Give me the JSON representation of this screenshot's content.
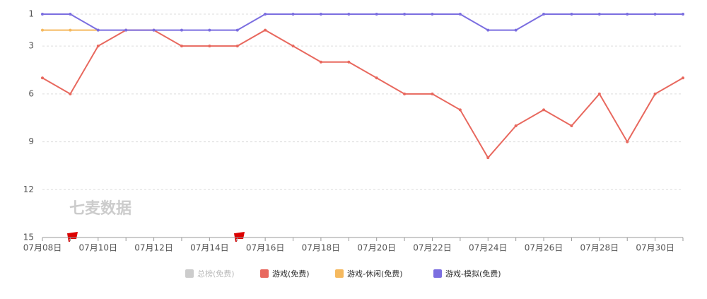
{
  "chart_data": {
    "type": "line",
    "categories": [
      "07月08日",
      null,
      "07月10日",
      null,
      "07月12日",
      null,
      "07月14日",
      null,
      "07月16日",
      null,
      "07月18日",
      null,
      "07月20日",
      null,
      "07月22日",
      null,
      "07月24日",
      null,
      "07月26日",
      null,
      "07月28日",
      null,
      "07月30日",
      null
    ],
    "series": [
      {
        "name": "总榜(免费)",
        "color": "#c8c8c8",
        "hidden": true,
        "values": [
          null,
          null,
          null,
          null,
          null,
          null,
          null,
          null,
          null,
          null,
          null,
          null,
          null,
          null,
          null,
          null,
          null,
          null,
          null,
          null,
          null,
          null,
          null,
          null
        ]
      },
      {
        "name": "游戏(免费)",
        "color": "#e8685e",
        "values": [
          5,
          6,
          3,
          2,
          2,
          3,
          3,
          3,
          2,
          3,
          4,
          4,
          5,
          6,
          6,
          7,
          10,
          8,
          7,
          8,
          6,
          9,
          6,
          5
        ]
      },
      {
        "name": "游戏-休闲(免费)",
        "color": "#f5b95f",
        "values": [
          2,
          2,
          2,
          null,
          null,
          null,
          null,
          null,
          null,
          null,
          null,
          null,
          null,
          null,
          null,
          null,
          null,
          null,
          null,
          null,
          null,
          null,
          null,
          null
        ]
      },
      {
        "name": "游戏-模拟(免费)",
        "color": "#7b6ee0",
        "values": [
          1,
          1,
          2,
          2,
          2,
          2,
          2,
          2,
          1,
          1,
          1,
          1,
          1,
          1,
          1,
          1,
          2,
          2,
          1,
          1,
          1,
          1,
          1,
          1
        ]
      }
    ],
    "ylim": [
      1,
      15
    ],
    "yticks": [
      1,
      3,
      6,
      9,
      12,
      15
    ],
    "y_inverted": true,
    "grid": true,
    "watermark": "七麦数据"
  }
}
